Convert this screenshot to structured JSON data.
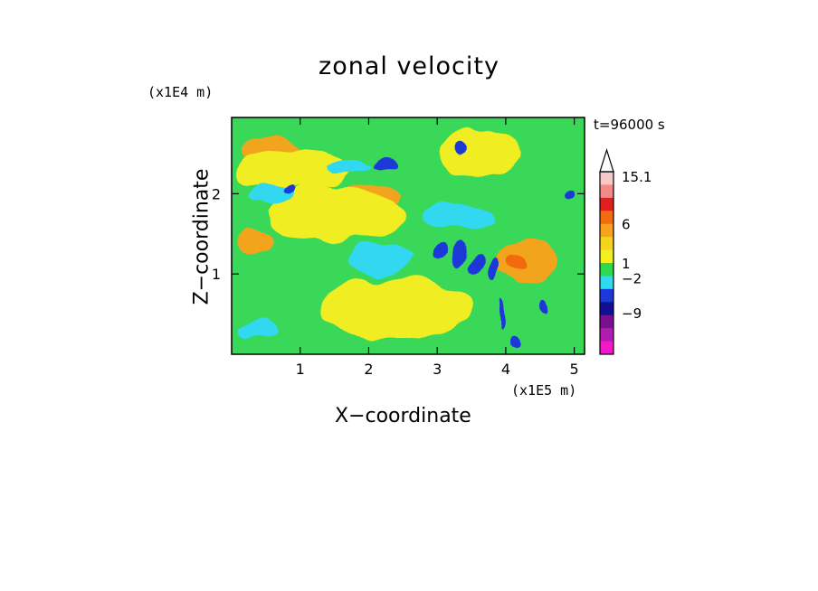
{
  "chart_data": {
    "type": "heatmap",
    "title": "zonal velocity",
    "xlabel": "X−coordinate",
    "ylabel": "Z−coordinate",
    "x_unit": "(x1E5 m)",
    "y_unit": "(x1E4 m)",
    "annotation": "t=96000 s",
    "xlim": [
      0,
      5.15
    ],
    "ylim": [
      0,
      2.95
    ],
    "x_ticks": [
      1,
      2,
      3,
      4,
      5
    ],
    "x_tick_labels": [
      "1",
      "2",
      "3",
      "4",
      "5"
    ],
    "y_ticks": [
      1,
      2
    ],
    "y_tick_labels": [
      "1",
      "2"
    ],
    "colorbar": {
      "levels": [
        "15.1",
        "6",
        "1",
        "−2",
        "−9"
      ],
      "colors_top_to_bottom": [
        "#f7c8c8",
        "#f28a88",
        "#e02020",
        "#f26b10",
        "#f5a21c",
        "#f5d31c",
        "#f0f020",
        "#30d850",
        "#30d8f0",
        "#1c38d8",
        "#101090",
        "#7a1090",
        "#b01cb0",
        "#f018c8"
      ],
      "extend_max": true
    },
    "field": {
      "background_color": "#3ad858",
      "features": [
        {
          "kind": "warm",
          "color": "#f2a51c",
          "x": 0.55,
          "y": 2.5,
          "rx": 0.45,
          "ry": 0.2
        },
        {
          "kind": "warm",
          "color": "#f2a51c",
          "x": 2.0,
          "y": 1.95,
          "rx": 0.5,
          "ry": 0.18
        },
        {
          "kind": "warm",
          "color": "#f2a51c",
          "x": 0.35,
          "y": 1.4,
          "rx": 0.3,
          "ry": 0.15
        },
        {
          "kind": "warm",
          "color": "#f2a51c",
          "x": 4.3,
          "y": 1.15,
          "rx": 0.45,
          "ry": 0.28
        },
        {
          "kind": "warm",
          "color": "#f26b10",
          "x": 4.15,
          "y": 1.15,
          "rx": 0.15,
          "ry": 0.12
        },
        {
          "kind": "yellow",
          "color": "#f0ee20",
          "x": 1.5,
          "y": 1.75,
          "rx": 1.0,
          "ry": 0.35
        },
        {
          "kind": "yellow",
          "color": "#f0ee20",
          "x": 2.4,
          "y": 0.55,
          "rx": 1.1,
          "ry": 0.4
        },
        {
          "kind": "yellow",
          "color": "#f0ee20",
          "x": 0.9,
          "y": 2.3,
          "rx": 0.9,
          "ry": 0.25
        },
        {
          "kind": "yellow",
          "color": "#f0ee20",
          "x": 3.6,
          "y": 2.5,
          "rx": 0.6,
          "ry": 0.3
        },
        {
          "kind": "cyan",
          "color": "#30d8f0",
          "x": 0.55,
          "y": 2.0,
          "rx": 0.3,
          "ry": 0.12
        },
        {
          "kind": "cyan",
          "color": "#30d8f0",
          "x": 2.2,
          "y": 1.2,
          "rx": 0.5,
          "ry": 0.2
        },
        {
          "kind": "cyan",
          "color": "#30d8f0",
          "x": 1.7,
          "y": 2.35,
          "rx": 0.35,
          "ry": 0.1
        },
        {
          "kind": "cyan",
          "color": "#30d8f0",
          "x": 3.3,
          "y": 1.7,
          "rx": 0.5,
          "ry": 0.15
        },
        {
          "kind": "cyan",
          "color": "#30d8f0",
          "x": 0.4,
          "y": 0.3,
          "rx": 0.3,
          "ry": 0.12
        },
        {
          "kind": "blue",
          "color": "#1c38d8",
          "x": 2.22,
          "y": 2.35,
          "rx": 0.15,
          "ry": 0.08
        },
        {
          "kind": "blue",
          "color": "#1c38d8",
          "x": 0.8,
          "y": 2.05,
          "rx": 0.1,
          "ry": 0.05
        },
        {
          "kind": "blue",
          "color": "#1c38d8",
          "x": 4.6,
          "y": 0.6,
          "rx": 0.06,
          "ry": 0.1
        },
        {
          "kind": "blue",
          "color": "#1c38d8",
          "x": 3.35,
          "y": 2.55,
          "rx": 0.1,
          "ry": 0.06
        },
        {
          "kind": "blue",
          "color": "#1c38d8",
          "x": 5.0,
          "y": 2.0,
          "rx": 0.07,
          "ry": 0.05
        },
        {
          "kind": "blue",
          "color": "#1c38d8",
          "x": 3.05,
          "y": 1.3,
          "rx": 0.12,
          "ry": 0.1
        },
        {
          "kind": "blue",
          "color": "#1c38d8",
          "x": 3.35,
          "y": 1.25,
          "rx": 0.1,
          "ry": 0.14
        },
        {
          "kind": "blue",
          "color": "#1c38d8",
          "x": 3.6,
          "y": 1.15,
          "rx": 0.1,
          "ry": 0.12
        },
        {
          "kind": "blue",
          "color": "#1c38d8",
          "x": 3.85,
          "y": 1.05,
          "rx": 0.06,
          "ry": 0.16
        },
        {
          "kind": "blue",
          "color": "#1c38d8",
          "x": 3.95,
          "y": 0.5,
          "rx": 0.05,
          "ry": 0.2
        },
        {
          "kind": "blue",
          "color": "#1c38d8",
          "x": 4.15,
          "y": 0.15,
          "rx": 0.07,
          "ry": 0.08
        }
      ]
    }
  }
}
